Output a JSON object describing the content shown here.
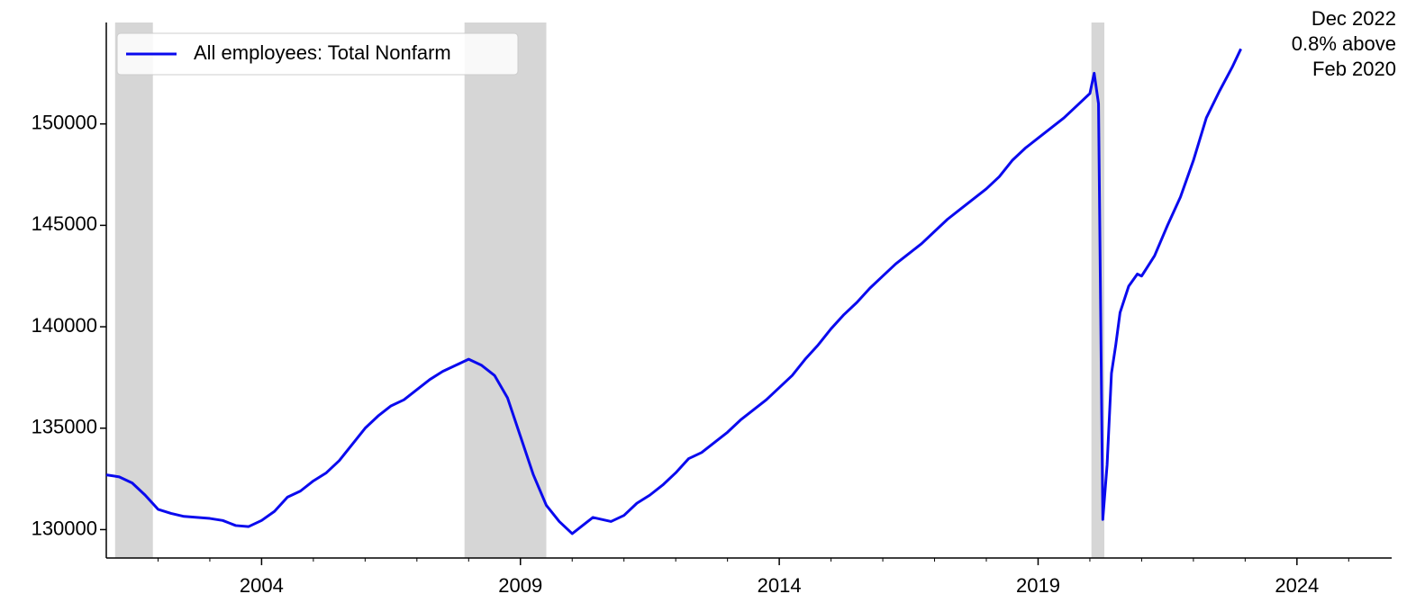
{
  "chart_data": {
    "type": "line",
    "x": [
      2001.0,
      2001.25,
      2001.5,
      2001.75,
      2002.0,
      2002.25,
      2002.5,
      2002.75,
      2003.0,
      2003.25,
      2003.5,
      2003.75,
      2004.0,
      2004.25,
      2004.5,
      2004.75,
      2005.0,
      2005.25,
      2005.5,
      2005.75,
      2006.0,
      2006.25,
      2006.5,
      2006.75,
      2007.0,
      2007.25,
      2007.5,
      2007.75,
      2008.0,
      2008.25,
      2008.5,
      2008.75,
      2009.0,
      2009.25,
      2009.5,
      2009.75,
      2010.0,
      2010.25,
      2010.4,
      2010.75,
      2011.0,
      2011.25,
      2011.5,
      2011.75,
      2012.0,
      2012.25,
      2012.5,
      2012.75,
      2013.0,
      2013.25,
      2013.5,
      2013.75,
      2014.0,
      2014.25,
      2014.5,
      2014.75,
      2015.0,
      2015.25,
      2015.5,
      2015.75,
      2016.0,
      2016.25,
      2016.5,
      2016.75,
      2017.0,
      2017.25,
      2017.5,
      2017.75,
      2018.0,
      2018.25,
      2018.5,
      2018.75,
      2019.0,
      2019.25,
      2019.5,
      2019.75,
      2020.0,
      2020.083,
      2020.167,
      2020.25,
      2020.333,
      2020.417,
      2020.5,
      2020.583,
      2020.75,
      2020.917,
      2021.0,
      2021.25,
      2021.5,
      2021.75,
      2022.0,
      2022.25,
      2022.5,
      2022.75,
      2022.917
    ],
    "series": [
      {
        "name": "All employees: Total Nonfarm",
        "color": "#0a0aee",
        "values": [
          132700,
          132600,
          132300,
          131700,
          131000,
          130800,
          130650,
          130600,
          130550,
          130450,
          130200,
          130150,
          130450,
          130900,
          131600,
          131900,
          132400,
          132800,
          133400,
          134200,
          135000,
          135600,
          136100,
          136400,
          136900,
          137400,
          137800,
          138100,
          138400,
          138100,
          137600,
          136500,
          134600,
          132700,
          131200,
          130400,
          129800,
          130300,
          130600,
          130400,
          130700,
          131300,
          131700,
          132200,
          132800,
          133500,
          133800,
          134300,
          134800,
          135400,
          135900,
          136400,
          137000,
          137600,
          138400,
          139100,
          139900,
          140600,
          141200,
          141900,
          142500,
          143100,
          143600,
          144100,
          144700,
          145300,
          145800,
          146300,
          146800,
          147400,
          148200,
          148800,
          149300,
          149800,
          150300,
          150900,
          151500,
          152500,
          151000,
          130500,
          133200,
          137700,
          139100,
          140700,
          142000,
          142600,
          142500,
          143500,
          145000,
          146400,
          148200,
          150300,
          151600,
          152800,
          153700
        ]
      }
    ],
    "recessions": [
      [
        2001.17,
        2001.9
      ],
      [
        2007.92,
        2009.5
      ],
      [
        2020.03,
        2020.28
      ]
    ],
    "recession_color": "#d6d6d6",
    "annotation": [
      "Dec 2022",
      "0.8% above",
      "Feb 2020"
    ],
    "xlim": [
      2001.0,
      2025.83
    ],
    "xticks": [
      2004,
      2009,
      2014,
      2019,
      2024
    ],
    "xminorticks": [
      2002,
      2003,
      2005,
      2006,
      2007,
      2008,
      2010,
      2011,
      2012,
      2013,
      2015,
      2016,
      2017,
      2018,
      2020,
      2021,
      2022,
      2023,
      2025
    ],
    "ylim": [
      128600,
      155000
    ],
    "yticks": [
      130000,
      135000,
      140000,
      145000,
      150000
    ],
    "legend": "upper left",
    "grid": false
  }
}
